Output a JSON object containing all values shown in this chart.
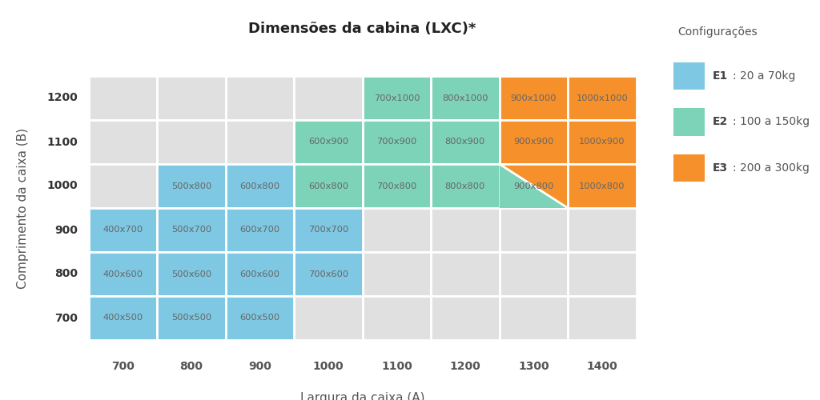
{
  "title": "Dimensões da cabina (LXC)*",
  "xlabel": "Largura da caixa (A)",
  "ylabel": "Comprimento da caixa (B)",
  "col_labels": [
    "700",
    "800",
    "900",
    "1000",
    "1100",
    "1200",
    "1300",
    "1400"
  ],
  "row_labels": [
    "1200",
    "1100",
    "1000",
    "900",
    "800",
    "700"
  ],
  "bg_color": "#e0e0e0",
  "e1_color": "#7ec8e3",
  "e2_color": "#7dd3b8",
  "e3_color": "#f5902a",
  "text_color": "#666666",
  "row_label_color": "#333333",
  "col_label_color": "#555555",
  "legend_title": "Configurações",
  "legend_items": [
    {
      "label": "E1",
      "desc": ": 20 a 70kg",
      "color": "#7ec8e3"
    },
    {
      "label": "E2",
      "desc": ": 100 a 150kg",
      "color": "#7dd3b8"
    },
    {
      "label": "E3",
      "desc": ": 200 a 300kg",
      "color": "#f5902a"
    }
  ],
  "cells": [
    {
      "row": 0,
      "col": 4,
      "color": "e2",
      "text": "700x1000"
    },
    {
      "row": 0,
      "col": 5,
      "color": "e2",
      "text": "800x1000"
    },
    {
      "row": 0,
      "col": 6,
      "color": "e3",
      "text": "900x1000"
    },
    {
      "row": 0,
      "col": 7,
      "color": "e3",
      "text": "1000x1000"
    },
    {
      "row": 1,
      "col": 3,
      "color": "e2",
      "text": "600x900"
    },
    {
      "row": 1,
      "col": 4,
      "color": "e2",
      "text": "700x900"
    },
    {
      "row": 1,
      "col": 5,
      "color": "e2",
      "text": "800x900"
    },
    {
      "row": 1,
      "col": 6,
      "color": "e3",
      "text": "900x900"
    },
    {
      "row": 1,
      "col": 7,
      "color": "e3",
      "text": "1000x900"
    },
    {
      "row": 2,
      "col": 1,
      "color": "e1",
      "text": "500x800"
    },
    {
      "row": 2,
      "col": 2,
      "color": "e1",
      "text": "600x800"
    },
    {
      "row": 2,
      "col": 3,
      "color": "e2",
      "text": "600x800"
    },
    {
      "row": 2,
      "col": 4,
      "color": "e2",
      "text": "700x800"
    },
    {
      "row": 2,
      "col": 5,
      "color": "e2",
      "text": "800x800"
    },
    {
      "row": 2,
      "col": 6,
      "color": "diag",
      "text": "900x800"
    },
    {
      "row": 2,
      "col": 7,
      "color": "e3",
      "text": "1000x800"
    },
    {
      "row": 3,
      "col": 0,
      "color": "e1",
      "text": "400x700"
    },
    {
      "row": 3,
      "col": 1,
      "color": "e1",
      "text": "500x700"
    },
    {
      "row": 3,
      "col": 2,
      "color": "e1",
      "text": "600x700"
    },
    {
      "row": 3,
      "col": 3,
      "color": "e1",
      "text": "700x700"
    },
    {
      "row": 4,
      "col": 0,
      "color": "e1",
      "text": "400x600"
    },
    {
      "row": 4,
      "col": 1,
      "color": "e1",
      "text": "500x600"
    },
    {
      "row": 4,
      "col": 2,
      "color": "e1",
      "text": "600x600"
    },
    {
      "row": 4,
      "col": 3,
      "color": "e1",
      "text": "700x600"
    },
    {
      "row": 5,
      "col": 0,
      "color": "e1",
      "text": "400x500"
    },
    {
      "row": 5,
      "col": 1,
      "color": "e1",
      "text": "500x500"
    },
    {
      "row": 5,
      "col": 2,
      "color": "e1",
      "text": "600x500"
    }
  ]
}
